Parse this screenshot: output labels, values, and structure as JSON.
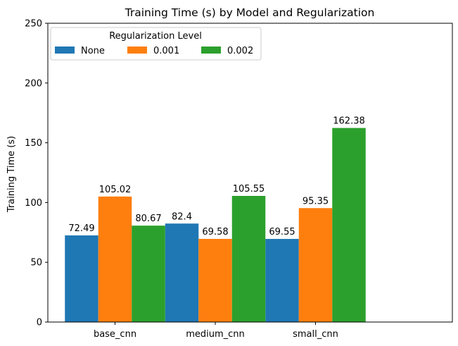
{
  "chart_data": {
    "type": "bar",
    "title": "Training Time (s) by Model and Regularization",
    "xlabel": "",
    "ylabel": "Training Time (s)",
    "ylim": [
      0,
      250
    ],
    "yticks": [
      0,
      50,
      100,
      150,
      200,
      250
    ],
    "categories": [
      "base_cnn",
      "medium_cnn",
      "small_cnn"
    ],
    "legend": {
      "title": "Regularization Level",
      "placement": "top-left",
      "columns": 3
    },
    "grid": false,
    "series": [
      {
        "name": "None",
        "color": "#1f77b4",
        "values": [
          72.49,
          82.4,
          69.55
        ],
        "labels": [
          "72.49",
          "82.4",
          "69.55"
        ]
      },
      {
        "name": "0.001",
        "color": "#ff7f0e",
        "values": [
          105.02,
          69.58,
          95.35
        ],
        "labels": [
          "105.02",
          "69.58",
          "95.35"
        ]
      },
      {
        "name": "0.002",
        "color": "#2ca02c",
        "values": [
          80.67,
          105.55,
          162.38
        ],
        "labels": [
          "80.67",
          "105.55",
          "162.38"
        ]
      }
    ]
  }
}
